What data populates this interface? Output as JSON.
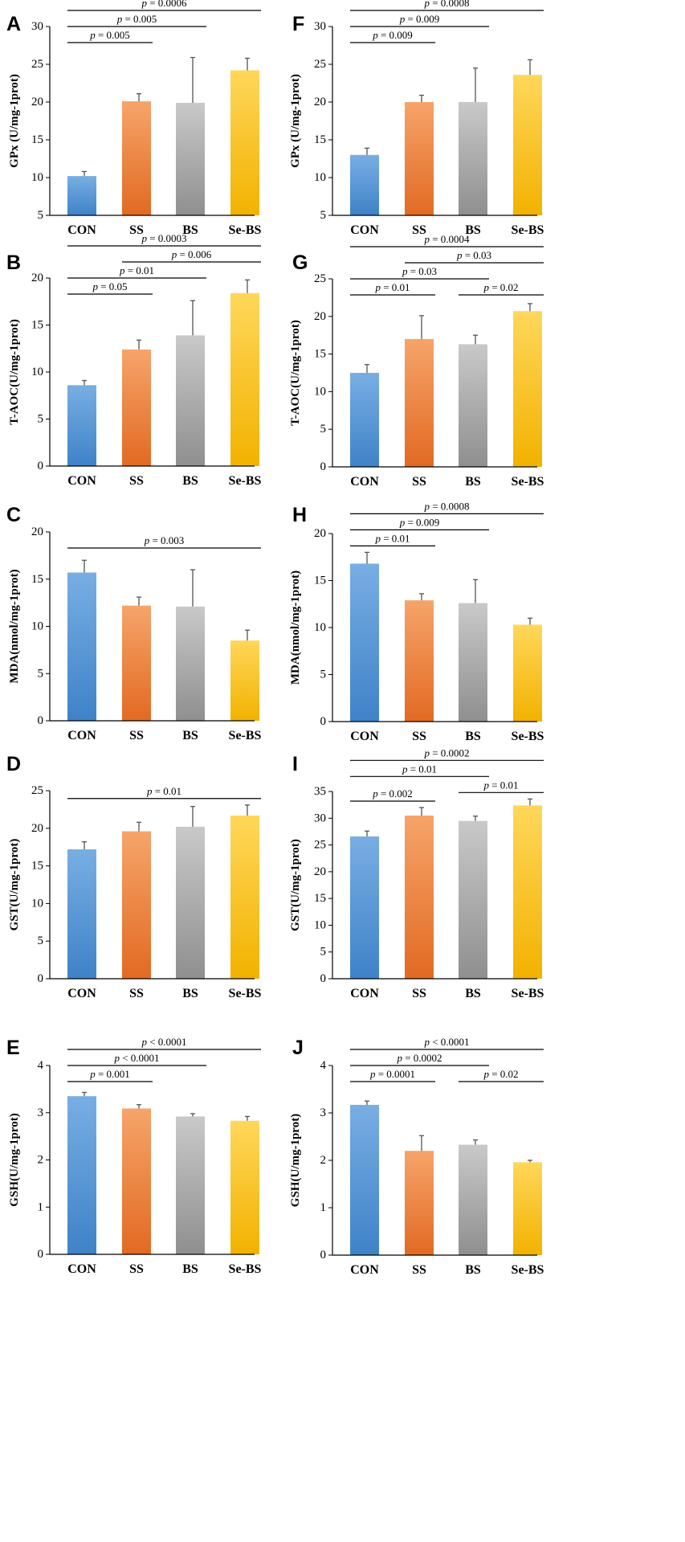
{
  "categories": [
    "CON",
    "SS",
    "BS",
    "Se-BS"
  ],
  "colors": {
    "CON": [
      "#78aee3",
      "#3f82c8"
    ],
    "SS": [
      "#f6a46a",
      "#e26a22"
    ],
    "BS": [
      "#c9c9c9",
      "#8f8f8f"
    ],
    "Se-BS": [
      "#ffd75a",
      "#f2b200"
    ]
  },
  "chart_data": [
    {
      "panel": "A",
      "type": "bar",
      "ylabel": "GPx (U/mg-1prot)",
      "ylim": [
        5,
        30
      ],
      "ticks": [
        5,
        10,
        15,
        20,
        25,
        30
      ],
      "values": [
        10.2,
        20.1,
        19.9,
        24.2
      ],
      "errors": [
        0.6,
        1.0,
        6.0,
        1.6
      ],
      "comparisons": [
        {
          "from": 0,
          "to": 1,
          "p": "p = 0.005"
        },
        {
          "from": 0,
          "to": 2,
          "p": "p = 0.005"
        },
        {
          "from": 0,
          "to": 3,
          "p": "p = 0.0006"
        }
      ]
    },
    {
      "panel": "F",
      "type": "bar",
      "ylabel": "GPx (U/mg-1prot)",
      "ylim": [
        5,
        30
      ],
      "ticks": [
        5,
        10,
        15,
        20,
        25,
        30
      ],
      "values": [
        13.0,
        20.0,
        20.0,
        23.6
      ],
      "errors": [
        0.9,
        0.9,
        4.5,
        2.0
      ],
      "comparisons": [
        {
          "from": 0,
          "to": 1,
          "p": "p = 0.009"
        },
        {
          "from": 0,
          "to": 2,
          "p": "p = 0.009"
        },
        {
          "from": 0,
          "to": 3,
          "p": "p = 0.0008"
        }
      ]
    },
    {
      "panel": "B",
      "type": "bar",
      "ylabel": "T-AOC(U/mg-1prot)",
      "ylim": [
        0,
        20
      ],
      "ticks": [
        0,
        5,
        10,
        15,
        20
      ],
      "values": [
        8.6,
        12.4,
        13.9,
        18.4
      ],
      "errors": [
        0.5,
        1.0,
        3.7,
        1.4
      ],
      "comparisons": [
        {
          "from": 0,
          "to": 1,
          "p": "p = 0.05"
        },
        {
          "from": 0,
          "to": 2,
          "p": "p = 0.01"
        },
        {
          "from": 1,
          "to": 3,
          "p": "p = 0.006"
        },
        {
          "from": 0,
          "to": 3,
          "p": "p = 0.0003"
        }
      ]
    },
    {
      "panel": "G",
      "type": "bar",
      "ylabel": "T-AOC(U/mg-1prot)",
      "ylim": [
        0,
        25
      ],
      "ticks": [
        0,
        5,
        10,
        15,
        20,
        25
      ],
      "values": [
        12.5,
        17.0,
        16.3,
        20.7
      ],
      "errors": [
        1.1,
        3.1,
        1.2,
        1.0
      ],
      "comparisons": [
        {
          "from": 0,
          "to": 1,
          "p": "p = 0.01"
        },
        {
          "from": 0,
          "to": 2,
          "p": "p = 0.03"
        },
        {
          "from": 2,
          "to": 3,
          "p": "p = 0.02"
        },
        {
          "from": 1,
          "to": 3,
          "p": "p = 0.03"
        },
        {
          "from": 0,
          "to": 3,
          "p": "p = 0.0004"
        }
      ]
    },
    {
      "panel": "C",
      "type": "bar",
      "ylabel": "MDA(nmol/mg-1prot)",
      "ylim": [
        0,
        20
      ],
      "ticks": [
        0,
        5,
        10,
        15,
        20
      ],
      "values": [
        15.7,
        12.2,
        12.1,
        8.5
      ],
      "errors": [
        1.3,
        0.9,
        3.9,
        1.1
      ],
      "comparisons": [
        {
          "from": 0,
          "to": 3,
          "p": "p = 0.003"
        }
      ]
    },
    {
      "panel": "H",
      "type": "bar",
      "ylabel": "MDA(nmol/mg-1prot)",
      "ylim": [
        0,
        20
      ],
      "ticks": [
        0,
        5,
        10,
        15,
        20
      ],
      "values": [
        16.8,
        12.9,
        12.6,
        10.3
      ],
      "errors": [
        1.2,
        0.7,
        2.5,
        0.7
      ],
      "comparisons": [
        {
          "from": 0,
          "to": 1,
          "p": "p = 0.01"
        },
        {
          "from": 0,
          "to": 2,
          "p": "p = 0.009"
        },
        {
          "from": 0,
          "to": 3,
          "p": "p = 0.0008"
        }
      ]
    },
    {
      "panel": "D",
      "type": "bar",
      "ylabel": "GST(U/mg-1prot)",
      "ylim": [
        0,
        25
      ],
      "ticks": [
        0,
        5,
        10,
        15,
        20,
        25
      ],
      "values": [
        17.2,
        19.6,
        20.2,
        21.7
      ],
      "errors": [
        1.0,
        1.2,
        2.7,
        1.4
      ],
      "comparisons": [
        {
          "from": 0,
          "to": 3,
          "p": "p = 0.01"
        }
      ]
    },
    {
      "panel": "I",
      "type": "bar",
      "ylabel": "GST(U/mg-1prot)",
      "ylim": [
        0,
        35
      ],
      "ticks": [
        0,
        5,
        10,
        15,
        20,
        25,
        30,
        35
      ],
      "values": [
        26.6,
        30.5,
        29.5,
        32.4
      ],
      "errors": [
        1.0,
        1.5,
        0.9,
        1.2
      ],
      "comparisons": [
        {
          "from": 0,
          "to": 1,
          "p": "p = 0.002"
        },
        {
          "from": 0,
          "to": 2,
          "p": "p = 0.01"
        },
        {
          "from": 2,
          "to": 3,
          "p": "p = 0.01"
        },
        {
          "from": 0,
          "to": 3,
          "p": "p = 0.0002"
        }
      ]
    },
    {
      "panel": "E",
      "type": "bar",
      "ylabel": "GSH(U/mg-1prot)",
      "ylim": [
        0,
        4
      ],
      "ticks": [
        0,
        1,
        2,
        3,
        4
      ],
      "values": [
        3.35,
        3.09,
        2.92,
        2.83
      ],
      "errors": [
        0.08,
        0.08,
        0.06,
        0.09
      ],
      "comparisons": [
        {
          "from": 0,
          "to": 1,
          "p": "p = 0.001"
        },
        {
          "from": 0,
          "to": 2,
          "p": "p < 0.0001"
        },
        {
          "from": 0,
          "to": 3,
          "p": "p < 0.0001"
        }
      ]
    },
    {
      "panel": "J",
      "type": "bar",
      "ylabel": "GSH(U/mg-1prot)",
      "ylim": [
        0,
        4
      ],
      "ticks": [
        0,
        1,
        2,
        3,
        4
      ],
      "values": [
        3.17,
        2.2,
        2.33,
        1.96
      ],
      "errors": [
        0.08,
        0.32,
        0.1,
        0.04
      ],
      "comparisons": [
        {
          "from": 0,
          "to": 1,
          "p": "p = 0.0001"
        },
        {
          "from": 0,
          "to": 2,
          "p": "p = 0.0002"
        },
        {
          "from": 2,
          "to": 3,
          "p": "p = 0.02"
        },
        {
          "from": 0,
          "to": 3,
          "p": "p < 0.0001"
        }
      ]
    }
  ]
}
